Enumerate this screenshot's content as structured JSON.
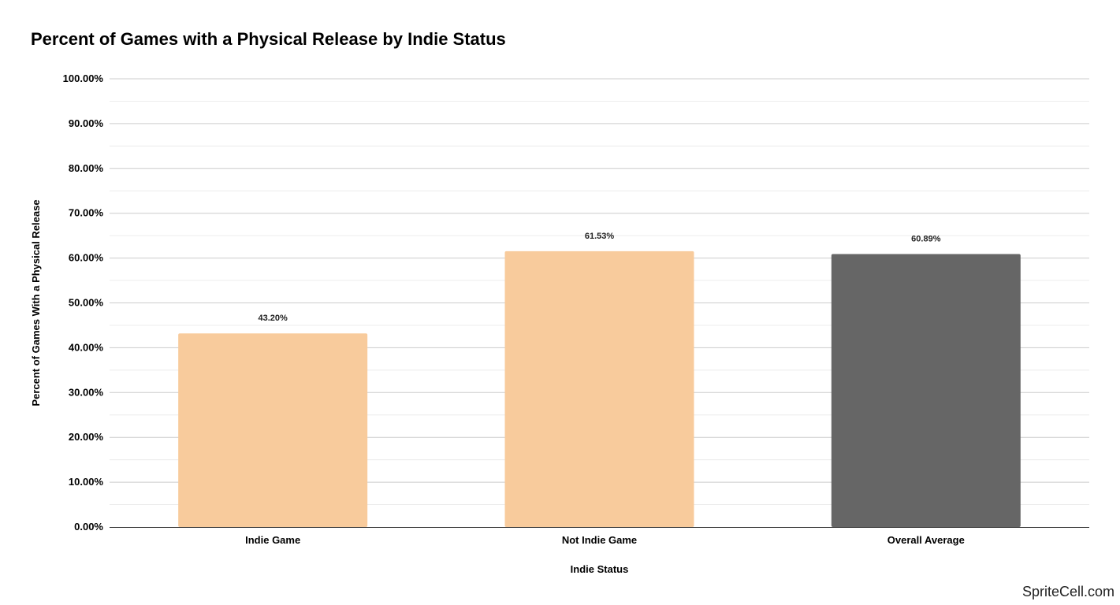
{
  "chart_data": {
    "type": "bar",
    "title": "Percent of Games with a Physical Release by Indie Status",
    "xlabel": "Indie Status",
    "ylabel": "Percent of Games With a Physical Release",
    "categories": [
      "Indie Game",
      "Not Indie Game",
      "Overall Average"
    ],
    "values": [
      43.2,
      61.53,
      60.89
    ],
    "data_labels": [
      "43.20%",
      "61.53%",
      "60.89%"
    ],
    "bar_colors": [
      "#f8cb9c",
      "#f8cb9c",
      "#666666"
    ],
    "ylim": [
      0,
      100
    ],
    "yticks": [
      0,
      10,
      20,
      30,
      40,
      50,
      60,
      70,
      80,
      90,
      100
    ],
    "ytick_labels": [
      "0.00%",
      "10.00%",
      "20.00%",
      "30.00%",
      "40.00%",
      "50.00%",
      "60.00%",
      "70.00%",
      "80.00%",
      "90.00%",
      "100.00%"
    ],
    "grid": true,
    "legend": "none"
  },
  "watermark": "SpriteCell.com"
}
